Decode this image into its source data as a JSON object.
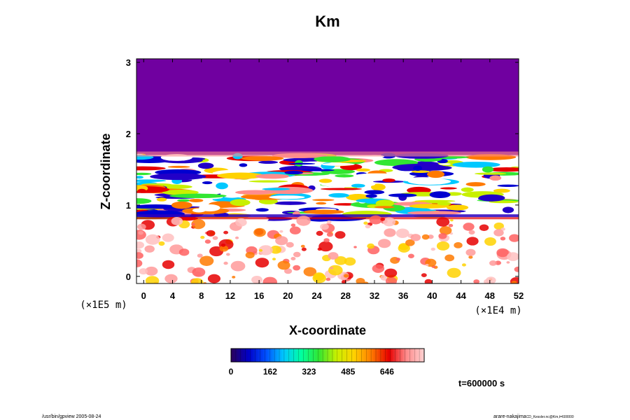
{
  "chart_data": {
    "type": "heatmap",
    "title": "Km",
    "xlabel": "X-coordinate",
    "ylabel": "Z-coordinate",
    "x_scale_note": "(×1E4 m)",
    "y_scale_note": "(×1E5 m)",
    "xlim": [
      -1,
      52
    ],
    "ylim": [
      -0.1,
      3.05
    ],
    "xticks": [
      0,
      4,
      8,
      12,
      16,
      20,
      24,
      28,
      32,
      36,
      40,
      44,
      48,
      52
    ],
    "yticks": [
      0,
      1,
      2,
      3
    ],
    "colorbar": {
      "ticks": [
        0,
        162,
        323,
        485,
        646
      ],
      "min": 0,
      "max": 800,
      "colors": [
        "#2b005a",
        "#0000c8",
        "#0050ff",
        "#00c8ff",
        "#00ffa0",
        "#32e632",
        "#c8f000",
        "#ffd200",
        "#ff7a00",
        "#e60000",
        "#ff8c8c",
        "#ffd2d2"
      ]
    },
    "field_summary": {
      "upper_region_value": 0,
      "upper_region_z_range": [
        1.7,
        3.05
      ],
      "turbulent_layer_z_range": [
        0.8,
        1.7
      ],
      "lower_region_z_range": [
        -0.1,
        0.8
      ]
    },
    "time_label": "t=600000 s",
    "grid": false
  },
  "footer": {
    "left": "/usr/bin/gpview 2005-08-24",
    "right": "arare-nakajima",
    "right_small": "CD_Kessler.nc@Km,t=600000"
  }
}
